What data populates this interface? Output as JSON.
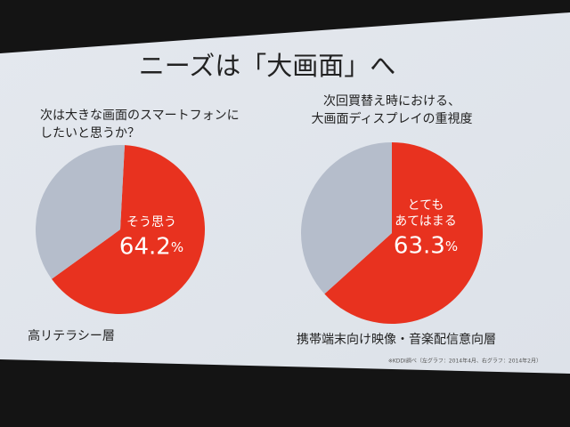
{
  "title": "ニーズは「大画面」へ",
  "footnote": "※KDDI調べ（左グラフ：2014年4月、右グラフ：2014年2月）",
  "chart_data": [
    {
      "type": "pie",
      "title": [
        "次は大きな画面のスマートフォンに",
        "したいと思うか？"
      ],
      "caption": "高リテラシー層",
      "categories": [
        "そう思う",
        null
      ],
      "values": [
        64.2,
        35.8
      ],
      "value_labels": [
        "64.2%",
        null
      ],
      "colors": [
        "#e8321f",
        "#b5bdcb"
      ]
    },
    {
      "type": "pie",
      "title": [
        "次回買替え時における、",
        "大画面ディスプレイの重視度"
      ],
      "caption": "携帯端末向け映像・音楽配信意向層",
      "categories": [
        "とても\nあてはまる",
        null
      ],
      "values": [
        63.3,
        36.7
      ],
      "value_labels": [
        "63.3%",
        null
      ],
      "colors": [
        "#e8321f",
        "#b5bdcb"
      ]
    }
  ]
}
